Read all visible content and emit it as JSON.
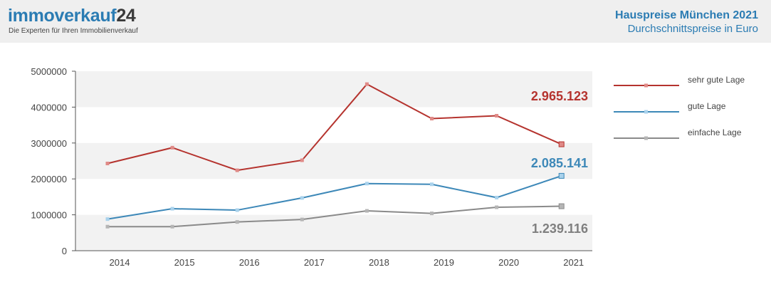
{
  "header": {
    "logo_main": "immoverkauf",
    "logo_num": "24",
    "tagline": "Die Experten für Ihren Immobilienverkauf",
    "title": "Hauspreise München 2021",
    "subtitle": "Durchschnittspreise in Euro"
  },
  "chart_data": {
    "type": "line",
    "categories": [
      "2014",
      "2015",
      "2016",
      "2017",
      "2018",
      "2019",
      "2020",
      "2021"
    ],
    "series": [
      {
        "name": "sehr gute Lage",
        "color": "#b5332e",
        "marker": "#e08a87",
        "values": [
          2430000,
          2870000,
          2240000,
          2520000,
          4640000,
          3680000,
          3760000,
          2965123
        ],
        "final_label": "2.965.123"
      },
      {
        "name": "gute Lage",
        "color": "#3d88b8",
        "marker": "#a9d2ec",
        "values": [
          880000,
          1170000,
          1130000,
          1470000,
          1870000,
          1850000,
          1480000,
          2085141
        ],
        "final_label": "2.085.141"
      },
      {
        "name": "einfache Lage",
        "color": "#8a8a8a",
        "marker": "#b5b5b5",
        "values": [
          670000,
          670000,
          800000,
          870000,
          1110000,
          1040000,
          1210000,
          1239116
        ],
        "final_label": "1.239.116"
      }
    ],
    "y_ticks": [
      "0",
      "1000000",
      "2000000",
      "3000000",
      "4000000",
      "5000000"
    ],
    "ylim": [
      0,
      5000000
    ],
    "grid": "alternating horizontal bands",
    "legend_position": "right"
  }
}
